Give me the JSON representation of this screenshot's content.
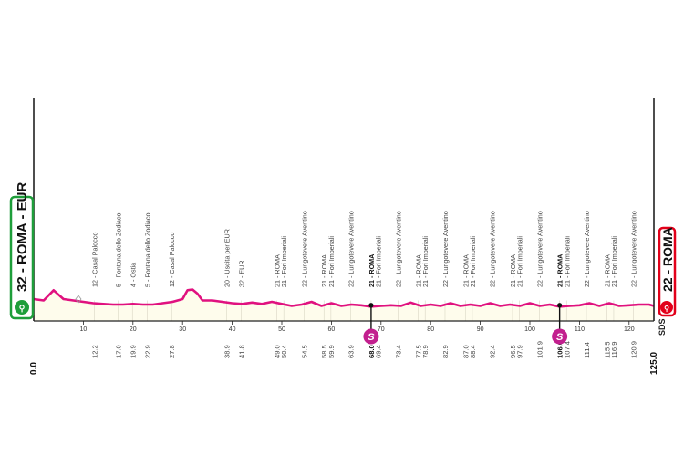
{
  "stage": {
    "start": {
      "altitude": "32",
      "name": "ROMA - EUR",
      "color": "#1e9e3a"
    },
    "finish": {
      "altitude": "22",
      "name": "ROMA",
      "color": "#e2001a"
    }
  },
  "brand_mark": "SDS",
  "colors": {
    "profile_line": "#e0117f",
    "profile_fill": "#fefcec",
    "axis": "#222222",
    "sprint_badge": "#c21f8e",
    "waypoint_text": "#444444"
  },
  "chart_data": {
    "type": "area",
    "title": "",
    "xlabel": "",
    "ylabel": "",
    "xlim": [
      0,
      125
    ],
    "x_ticks": [
      10,
      20,
      30,
      40,
      50,
      60,
      70,
      80,
      90,
      100,
      110,
      120
    ],
    "altitude_range": [
      0,
      400
    ],
    "profile": {
      "x": [
        0,
        2,
        4,
        6,
        8,
        10,
        12,
        14,
        16,
        18,
        20,
        22,
        24,
        26,
        28,
        30,
        31,
        32,
        33,
        34,
        36,
        38,
        40,
        42,
        44,
        46,
        48,
        50,
        52,
        54,
        56,
        58,
        60,
        62,
        64,
        66,
        68,
        70,
        72,
        74,
        76,
        78,
        80,
        82,
        84,
        86,
        88,
        90,
        92,
        94,
        96,
        98,
        100,
        102,
        104,
        106,
        108,
        110,
        112,
        114,
        116,
        118,
        120,
        122,
        124,
        125
      ],
      "y": [
        32,
        30,
        45,
        32,
        30,
        28,
        26,
        25,
        24,
        24,
        25,
        24,
        24,
        26,
        28,
        32,
        45,
        46,
        40,
        30,
        30,
        28,
        26,
        25,
        27,
        25,
        28,
        25,
        22,
        24,
        28,
        22,
        26,
        22,
        24,
        23,
        21,
        22,
        23,
        22,
        27,
        22,
        24,
        22,
        26,
        22,
        24,
        22,
        26,
        22,
        24,
        22,
        26,
        22,
        24,
        21,
        22,
        23,
        26,
        22,
        26,
        22,
        23,
        24,
        24,
        22
      ]
    },
    "waypoints": [
      {
        "km": "12.2",
        "label": "12 - Casal Palocco",
        "strong": false
      },
      {
        "km": "17.0",
        "label": "5 - Fontana dello Zodiaco",
        "strong": false
      },
      {
        "km": "19.9",
        "label": "4 - Ostia",
        "strong": false
      },
      {
        "km": "22.9",
        "label": "5 - Fontana dello Zodiaco",
        "strong": false
      },
      {
        "km": "27.8",
        "label": "12 - Casal Palocco",
        "strong": false
      },
      {
        "km": "38.9",
        "label": "20 - Uscita per EUR",
        "strong": false
      },
      {
        "km": "41.8",
        "label": "32 - EUR",
        "strong": false
      },
      {
        "km": "49.0",
        "label": "21 - ROMA",
        "strong": false
      },
      {
        "km": "50.4",
        "label": "21 - Fori Imperiali",
        "strong": false
      },
      {
        "km": "54.5",
        "label": "22 - Lungotevere Aventino",
        "strong": false
      },
      {
        "km": "58.5",
        "label": "21 - ROMA",
        "strong": false
      },
      {
        "km": "59.9",
        "label": "21 - Fori Imperiali",
        "strong": false
      },
      {
        "km": "63.9",
        "label": "22 - Lungotevere Aventino",
        "strong": false
      },
      {
        "km": "68.0",
        "label": "21 - ROMA",
        "strong": true
      },
      {
        "km": "69.4",
        "label": "21 - Fori Imperiali",
        "strong": false
      },
      {
        "km": "73.4",
        "label": "22 - Lungotevere Aventino",
        "strong": false
      },
      {
        "km": "77.5",
        "label": "21 - ROMA",
        "strong": false
      },
      {
        "km": "78.9",
        "label": "21 - Fori Imperiali",
        "strong": false
      },
      {
        "km": "82.9",
        "label": "22 - Lungotevere Aventino",
        "strong": false
      },
      {
        "km": "87.0",
        "label": "21 - ROMA",
        "strong": false
      },
      {
        "km": "88.4",
        "label": "21 - Fori Imperiali",
        "strong": false
      },
      {
        "km": "92.4",
        "label": "22 - Lungotevere Aventino",
        "strong": false
      },
      {
        "km": "96.5",
        "label": "21 - ROMA",
        "strong": false
      },
      {
        "km": "97.9",
        "label": "21 - Fori Imperiali",
        "strong": false
      },
      {
        "km": "101.9",
        "label": "22 - Lungotevere Aventino",
        "strong": false
      },
      {
        "km": "106.0",
        "label": "21 - ROMA",
        "strong": true
      },
      {
        "km": "107.4",
        "label": "21 - Fori Imperiali",
        "strong": false
      },
      {
        "km": "111.4",
        "label": "22 - Lungotevere Aventino",
        "strong": false
      },
      {
        "km": "115.5",
        "label": "21 - ROMA",
        "strong": false
      },
      {
        "km": "116.9",
        "label": "21 - Fori Imperiali",
        "strong": false
      },
      {
        "km": "120.9",
        "label": "22 - Lungotevere Aventino",
        "strong": false
      }
    ],
    "endpoints": [
      {
        "km": "0.0",
        "value": 0
      },
      {
        "km": "125.0",
        "value": 125
      }
    ],
    "sprints": [
      {
        "km": 68.0,
        "symbol": "S"
      },
      {
        "km": 106.0,
        "symbol": "S"
      }
    ],
    "feed_zone_km": 9
  }
}
